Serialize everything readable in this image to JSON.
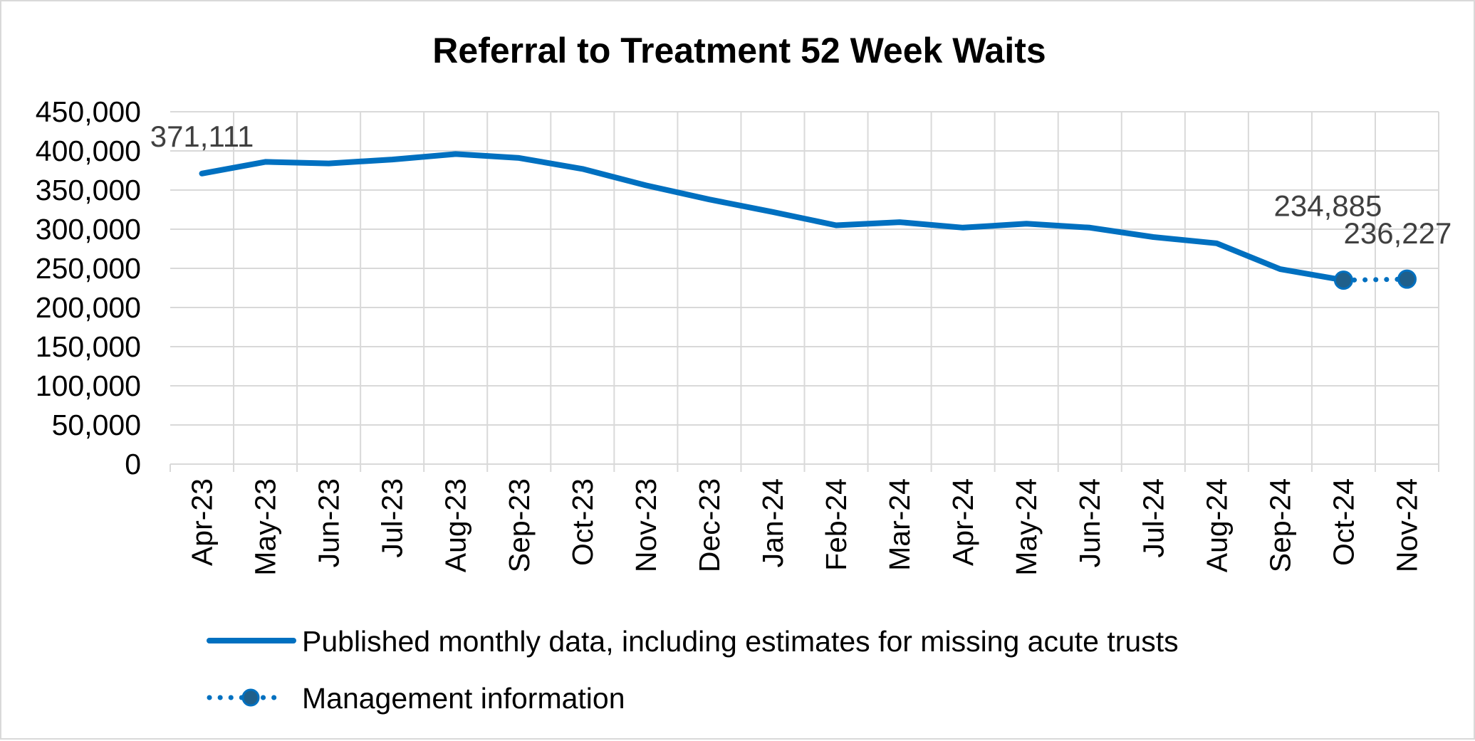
{
  "chart_data": {
    "type": "line",
    "title": "Referral to Treatment 52 Week Waits",
    "xlabel": "",
    "ylabel": "",
    "categories": [
      "Apr-23",
      "May-23",
      "Jun-23",
      "Jul-23",
      "Aug-23",
      "Sep-23",
      "Oct-23",
      "Nov-23",
      "Dec-23",
      "Jan-24",
      "Feb-24",
      "Mar-24",
      "Apr-24",
      "May-24",
      "Jun-24",
      "Jul-24",
      "Aug-24",
      "Sep-24",
      "Oct-24",
      "Nov-24"
    ],
    "yticks": [
      "0",
      "50,000",
      "100,000",
      "150,000",
      "200,000",
      "250,000",
      "300,000",
      "350,000",
      "400,000",
      "450,000"
    ],
    "ylim": [
      0,
      450000
    ],
    "grid": true,
    "legend_position": "bottom",
    "series": [
      {
        "name": "Published monthly data, including estimates for missing acute trusts",
        "style": "solid",
        "color": "#0070c0",
        "values": [
          371111,
          386000,
          384000,
          389000,
          396000,
          391000,
          377000,
          356000,
          338000,
          322000,
          305000,
          309000,
          302000,
          307000,
          302000,
          290000,
          282000,
          249000,
          234885,
          null
        ]
      },
      {
        "name": "Management information",
        "style": "dotted",
        "color": "#0070c0",
        "marker_color": "#1f5f8b",
        "values": [
          null,
          null,
          null,
          null,
          null,
          null,
          null,
          null,
          null,
          null,
          null,
          null,
          null,
          null,
          null,
          null,
          null,
          null,
          234885,
          236227
        ]
      }
    ],
    "data_labels": [
      {
        "text": "371,111",
        "index": 0
      },
      {
        "text": "234,885",
        "index": 18
      },
      {
        "text": "236,227",
        "index": 19
      }
    ]
  }
}
